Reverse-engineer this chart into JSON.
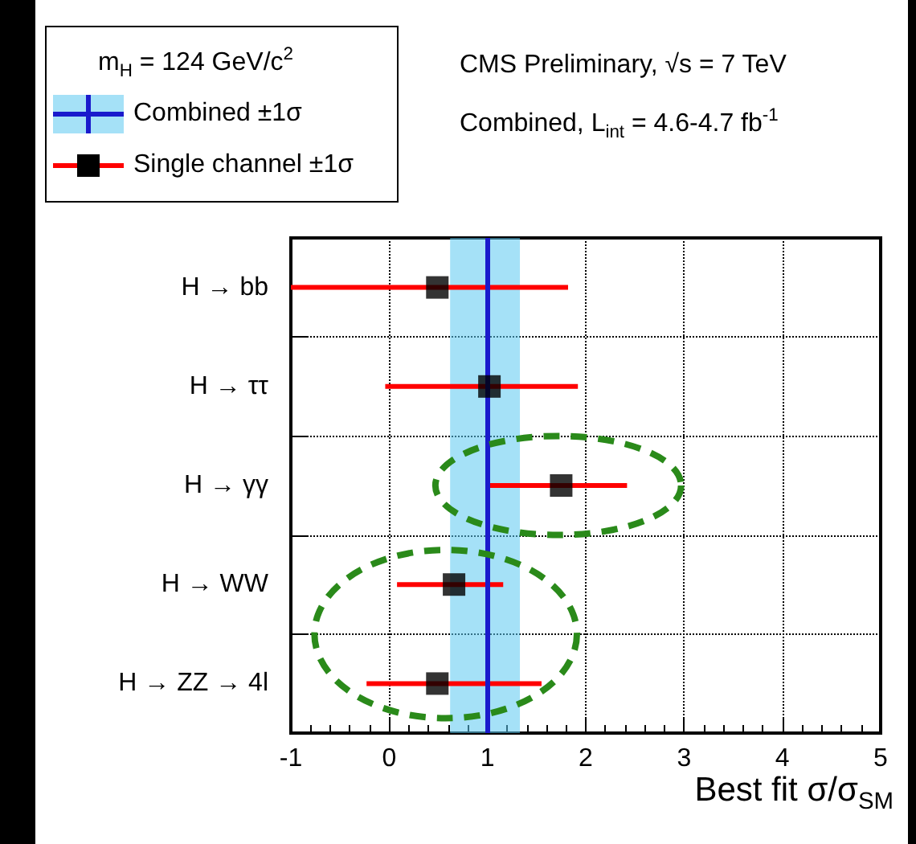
{
  "chart_data": {
    "type": "scatter",
    "orientation": "horizontal",
    "categories": [
      "H → bb",
      "H → ττ",
      "H → γγ",
      "H → WW",
      "H → ZZ → 4l"
    ],
    "series": [
      {
        "name": "Single channel ±1σ",
        "color": "#000000",
        "values": [
          0.49,
          1.02,
          1.75,
          0.66,
          0.49
        ],
        "errors": [
          [
            -1.0,
            1.82
          ],
          [
            -0.04,
            1.92
          ],
          [
            1.0,
            2.42
          ],
          [
            0.08,
            1.16
          ],
          [
            -0.23,
            1.55
          ]
        ]
      }
    ],
    "bands": [
      {
        "axis": "x",
        "from": 0.62,
        "to": 1.33,
        "label": "Combined ±1σ",
        "color": "#5bc8f0"
      }
    ],
    "ref_lines": [
      {
        "axis": "x",
        "value": 1,
        "color": "#1a1acc",
        "line_style": "solid"
      }
    ],
    "legend_title": "m$_{H}$ = 124 GeV/c$^{2}$",
    "annotations": [
      "CMS Preliminary, √s = 7 TeV",
      "Combined, L$_{int}$ = 4.6-4.7 fb$^{-1}$"
    ],
    "xlabel": "Best fit σ/σ$_{SM}$",
    "xlim": [
      -1,
      5
    ],
    "xticks": [
      -1,
      0,
      1,
      2,
      3,
      4,
      5
    ],
    "grid": true,
    "legend": "top left",
    "marker": "square"
  }
}
